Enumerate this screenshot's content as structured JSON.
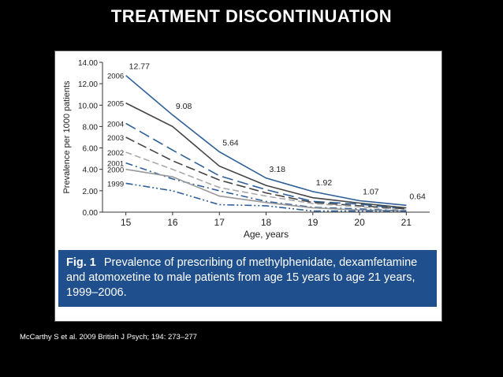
{
  "slide": {
    "title": "TREATMENT DISCONTINUATION",
    "citation": "McCarthy S et al. 2009 British J Psych; 194: 273–277"
  },
  "figure": {
    "caption_label": "Fig. 1",
    "caption_text": "Prevalence of prescribing of methylphenidate, dexamfetamine and atomoxetine to male patients from age 15 years to age 21 years, 1999–2006."
  },
  "chart_data": {
    "type": "line",
    "title": "",
    "xlabel": "Age, years",
    "ylabel": "Prevalence per 1000 patients",
    "x": [
      15,
      16,
      17,
      18,
      19,
      20,
      21
    ],
    "xlim": [
      14.5,
      21.5
    ],
    "ylim": [
      0,
      14
    ],
    "yticks": [
      "0.00",
      "2.00",
      "4.00",
      "6.00",
      "8.00",
      "10.00",
      "12.00",
      "14.00"
    ],
    "xticks": [
      "15",
      "16",
      "17",
      "18",
      "19",
      "20",
      "21"
    ],
    "grid": false,
    "series": [
      {
        "name": "2006",
        "color": "#2e5f98",
        "dash": "",
        "values": [
          12.77,
          9.08,
          5.64,
          3.18,
          1.92,
          1.07,
          0.64
        ]
      },
      {
        "name": "2005",
        "color": "#444444",
        "dash": "",
        "values": [
          10.2,
          8.0,
          4.3,
          2.5,
          1.35,
          0.85,
          0.4
        ]
      },
      {
        "name": "2004",
        "color": "#2e5f98",
        "dash": "14,6",
        "values": [
          8.3,
          5.8,
          3.4,
          2.1,
          1.0,
          0.75,
          0.3
        ]
      },
      {
        "name": "2003",
        "color": "#444444",
        "dash": "12,5",
        "values": [
          7.0,
          4.8,
          3.0,
          1.8,
          0.9,
          0.6,
          0.3
        ]
      },
      {
        "name": "2002",
        "color": "#aaaaaa",
        "dash": "8,4",
        "values": [
          5.6,
          4.0,
          2.3,
          1.5,
          0.8,
          0.5,
          0.2
        ]
      },
      {
        "name": "2001",
        "color": "#2e5f98",
        "dash": "9,4,2,4",
        "values": [
          4.6,
          3.1,
          2.0,
          1.0,
          0.45,
          0.3,
          0.1
        ]
      },
      {
        "name": "2000",
        "color": "#999999",
        "dash": "",
        "values": [
          4.0,
          3.3,
          1.5,
          0.9,
          0.4,
          0.2,
          0.1
        ]
      },
      {
        "name": "1999",
        "color": "#2e5f98",
        "dash": "9,3,2,3,2,3",
        "values": [
          2.7,
          2.0,
          0.7,
          0.6,
          0.1,
          0.1,
          0.1
        ]
      }
    ],
    "data_labels": [
      {
        "x": 15,
        "text": "12.77"
      },
      {
        "x": 16,
        "text": "9.08"
      },
      {
        "x": 17,
        "text": "5.64"
      },
      {
        "x": 18,
        "text": "3.18"
      },
      {
        "x": 19,
        "text": "1.92"
      },
      {
        "x": 20,
        "text": "1.07"
      },
      {
        "x": 21,
        "text": "0.64"
      }
    ]
  }
}
